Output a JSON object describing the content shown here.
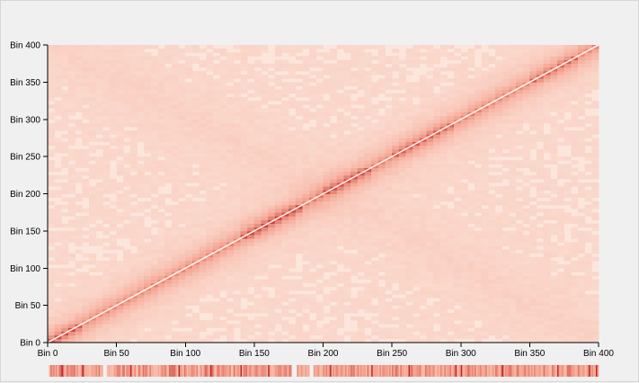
{
  "chart_data": {
    "type": "heatmap",
    "title": "",
    "xlabel": "",
    "ylabel": "",
    "x_range": [
      0,
      400
    ],
    "y_range": [
      0,
      400
    ],
    "x_ticks": [
      "Bin 0",
      "Bin 50",
      "Bin 100",
      "Bin 150",
      "Bin 200",
      "Bin 250",
      "Bin 300",
      "Bin 350",
      "Bin 400"
    ],
    "y_ticks": [
      "Bin 0",
      "Bin 50",
      "Bin 100",
      "Bin 150",
      "Bin 200",
      "Bin 250",
      "Bin 300",
      "Bin 350",
      "Bin 400"
    ],
    "tick_values": [
      0,
      50,
      100,
      150,
      200,
      250,
      300,
      350,
      400
    ],
    "bins": 400,
    "diagonal": true,
    "grid": false,
    "colormap": {
      "low": "#fce6dc",
      "mid": "#f4a08c",
      "high": "#c0282a",
      "diagonal_line": "#fff4ee"
    },
    "enriched_domains": [
      {
        "from": 0,
        "to": 20,
        "intensity": 0.8
      },
      {
        "from": 140,
        "to": 180,
        "intensity": 0.9
      },
      {
        "from": 200,
        "to": 230,
        "intensity": 0.7
      },
      {
        "from": 250,
        "to": 290,
        "intensity": 0.6
      },
      {
        "from": 350,
        "to": 380,
        "intensity": 0.5
      }
    ],
    "coverage_track": {
      "type": "bar",
      "gaps": [
        [
          0,
          0
        ],
        [
          40,
          42
        ],
        [
          177,
          180
        ],
        [
          190,
          192
        ]
      ],
      "strong_bins": [
        10,
        25,
        60,
        95,
        118,
        140,
        160,
        205,
        235,
        262,
        296,
        300,
        330,
        370,
        393,
        398
      ]
    }
  }
}
